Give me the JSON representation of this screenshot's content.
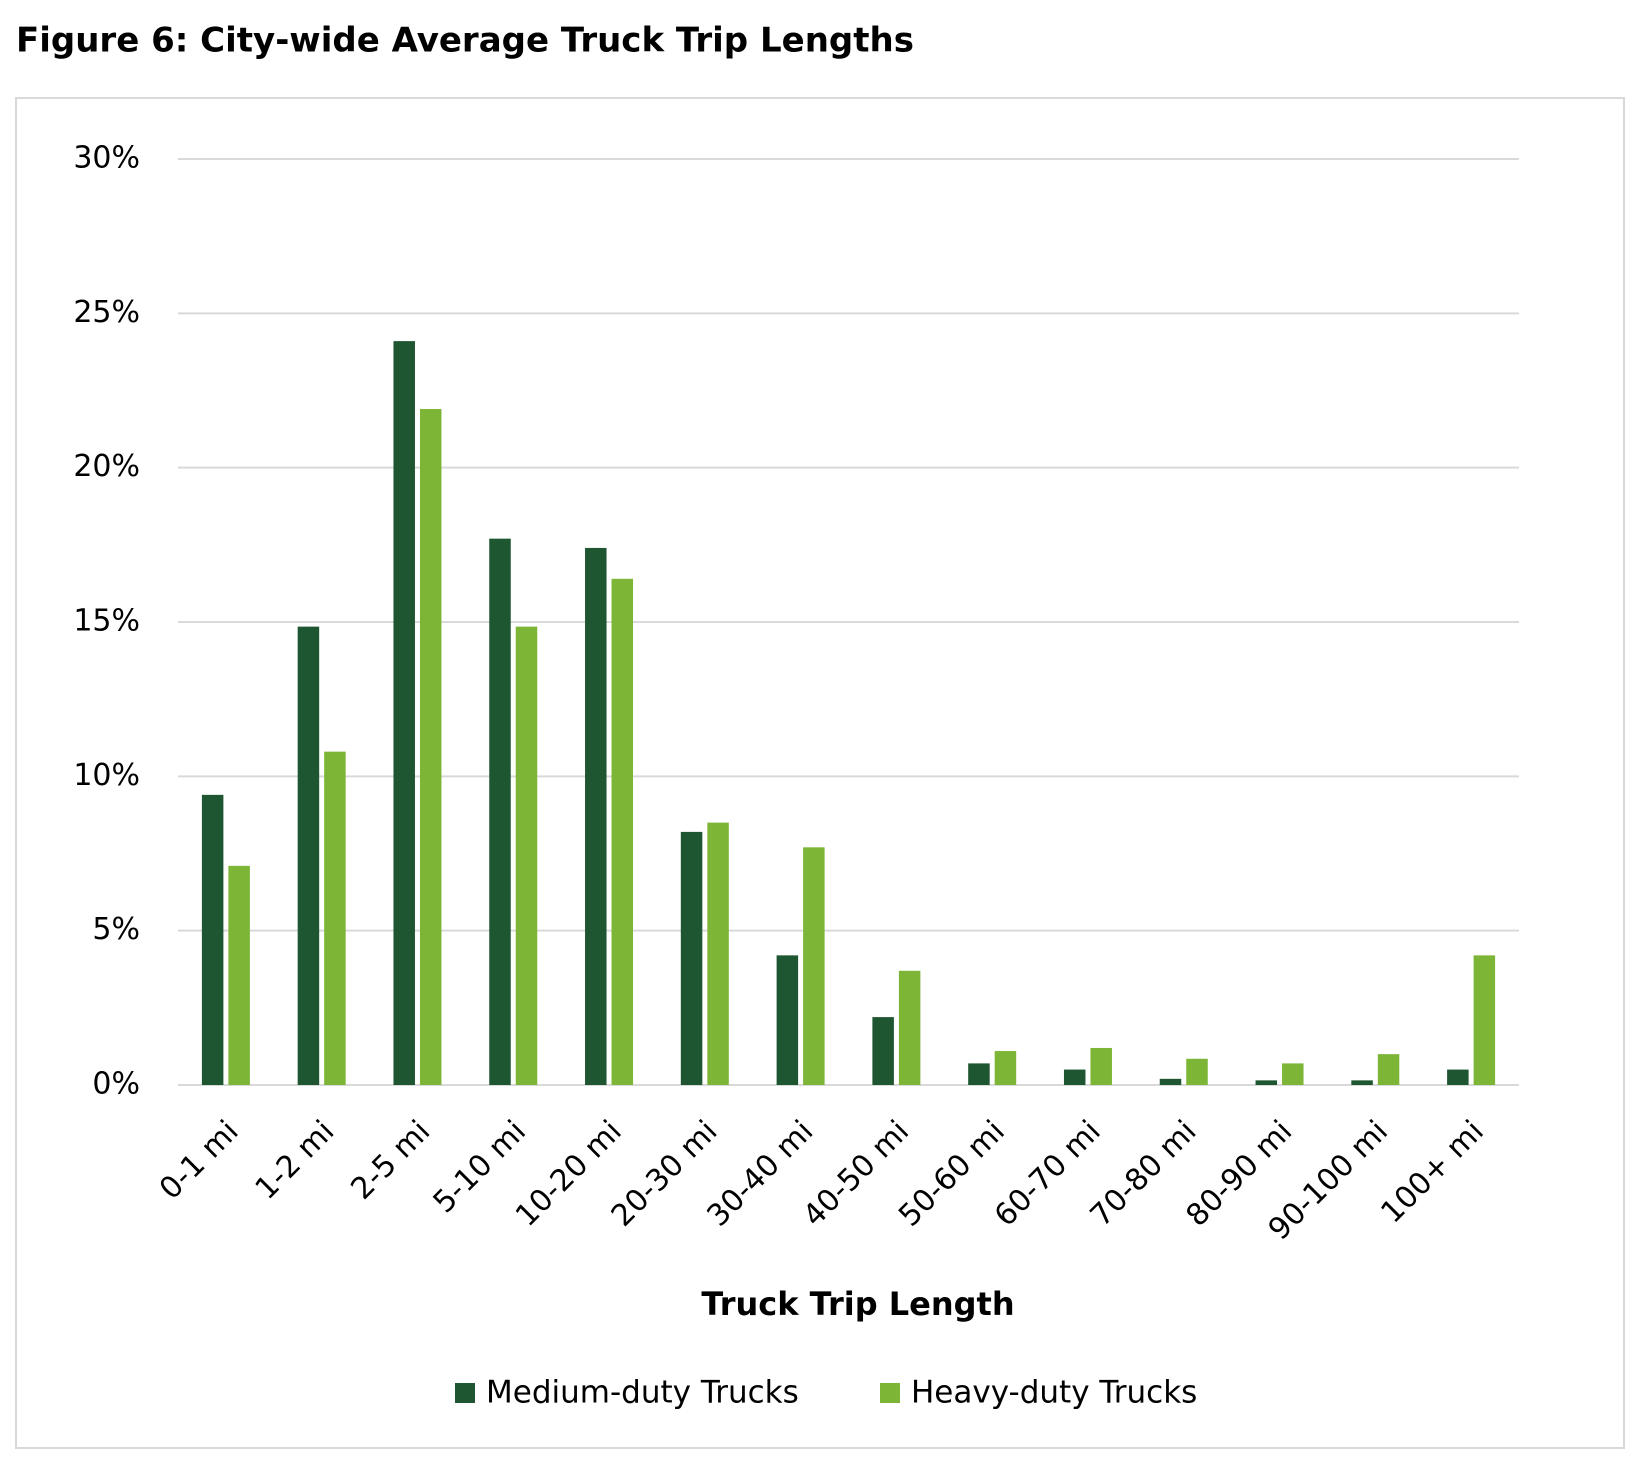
{
  "chart_data": {
    "type": "bar",
    "title": "Figure 6: City-wide Average Truck Trip Lengths",
    "x_label": "Truck Trip Length",
    "categories": [
      "0-1 mi",
      "1-2 mi",
      "2-5 mi",
      "5-10 mi",
      "10-20 mi",
      "20-30 mi",
      "30-40 mi",
      "40-50 mi",
      "50-60 mi",
      "60-70 mi",
      "70-80 mi",
      "80-90 mi",
      "90-100 mi",
      "100+ mi"
    ],
    "series": [
      {
        "name": "Medium-duty Trucks",
        "color": "#1e5631",
        "values": [
          9.4,
          14.85,
          24.1,
          17.7,
          17.4,
          8.2,
          4.2,
          2.2,
          0.7,
          0.5,
          0.2,
          0.15,
          0.15,
          0.5
        ]
      },
      {
        "name": "Heavy-duty Trucks",
        "color": "#7db637",
        "values": [
          7.1,
          10.8,
          21.9,
          14.85,
          16.4,
          8.5,
          7.7,
          3.7,
          1.1,
          1.2,
          0.85,
          0.7,
          1.0,
          4.2
        ]
      }
    ],
    "ylim": [
      0,
      30
    ],
    "yticks": [
      {
        "value": 0,
        "label": "0%"
      },
      {
        "value": 5,
        "label": "5%"
      },
      {
        "value": 10,
        "label": "10%"
      },
      {
        "value": 15,
        "label": "15%"
      },
      {
        "value": 20,
        "label": "20%"
      },
      {
        "value": 25,
        "label": "25%"
      },
      {
        "value": 30,
        "label": "30%"
      }
    ],
    "grid": true,
    "legend": "bottom"
  }
}
